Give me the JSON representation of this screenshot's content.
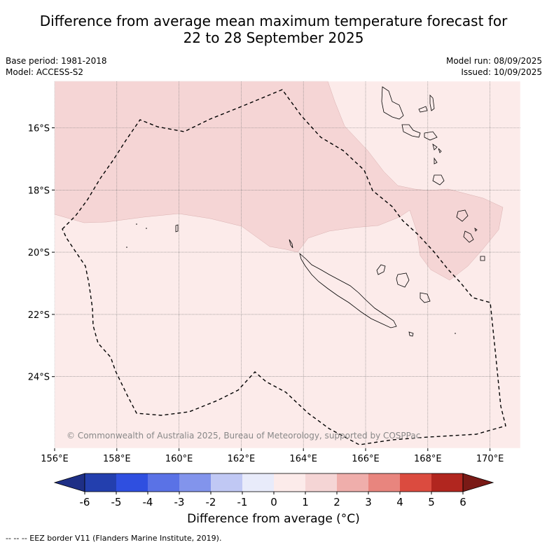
{
  "title_line1": "Difference from average mean maximum temperature forecast for",
  "title_line2": "22 to 28 September 2025",
  "base_period": "Base period: 1981-2018",
  "model": "Model: ACCESS-S2",
  "model_run": "Model run: 08/09/2025",
  "issued": "Issued: 10/09/2025",
  "copyright": "© Commonwealth of Australia 2025, Bureau of Meteorology, supported by COSPPac",
  "lon_labels": [
    "156°E",
    "158°E",
    "160°E",
    "162°E",
    "164°E",
    "166°E",
    "168°E",
    "170°E"
  ],
  "lon_values": [
    156,
    158,
    160,
    162,
    164,
    166,
    168,
    170
  ],
  "lat_labels": [
    "16°S",
    "18°S",
    "20°S",
    "22°S",
    "24°S"
  ],
  "lat_values": [
    -16,
    -18,
    -20,
    -22,
    -24
  ],
  "colorbar": {
    "ticks": [
      "-6",
      "-5",
      "-4",
      "-3",
      "-2",
      "-1",
      "0",
      "1",
      "2",
      "3",
      "4",
      "5",
      "6"
    ],
    "colors": [
      "#1e2f86",
      "#233fae",
      "#2f4fe0",
      "#5a72e6",
      "#8294ec",
      "#c0c8f4",
      "#e8ebfa",
      "#fcebea",
      "#f5d5d5",
      "#efaeab",
      "#e8857e",
      "#db4b3f",
      "#b1261f",
      "#7a1a16"
    ],
    "label": "Difference from average (°C)"
  },
  "colors": {
    "warm1": "#fcebea",
    "warm2": "#f5d5d5"
  },
  "footer": "-- -- -- EEZ border V11 (Flanders Marine Institute, 2019)."
}
